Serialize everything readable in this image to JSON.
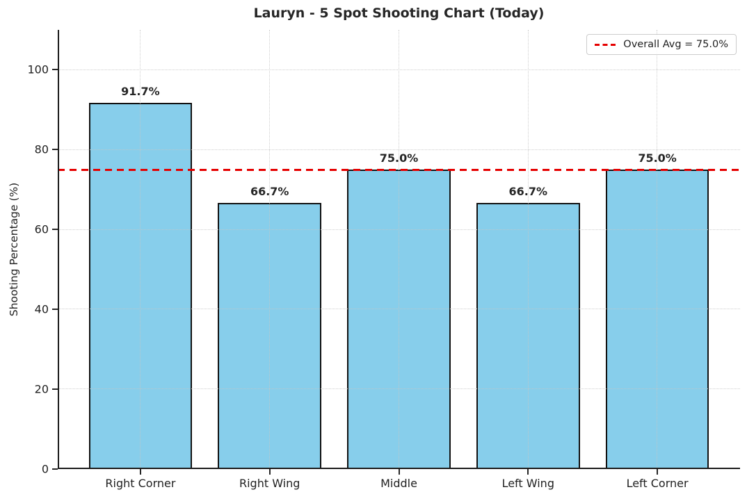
{
  "chart_data": {
    "type": "bar",
    "title": "Lauryn - 5 Spot Shooting Chart (Today)",
    "xlabel": "",
    "ylabel": "Shooting Percentage (%)",
    "categories": [
      "Right Corner",
      "Right Wing",
      "Middle",
      "Left Wing",
      "Left Corner"
    ],
    "values": [
      91.7,
      66.7,
      75.0,
      66.7,
      75.0
    ],
    "bar_labels": [
      "91.7%",
      "66.7%",
      "75.0%",
      "66.7%",
      "75.0%"
    ],
    "y_ticks": [
      0,
      20,
      40,
      60,
      80,
      100
    ],
    "y_tick_labels": [
      "0",
      "20",
      "40",
      "60",
      "80",
      "100"
    ],
    "ylim": [
      0,
      110
    ],
    "grid": "dotted, both axes, light gray",
    "spines": "left and bottom only",
    "avg_line": {
      "value": 75.0,
      "style": "dashed",
      "color": "#e50000"
    },
    "legend": {
      "position": "upper right",
      "entries": [
        {
          "label": "Overall Avg = 75.0%",
          "style": "dashed",
          "color": "#e50000"
        }
      ]
    },
    "colors": {
      "bar_fill": "#87ceeb",
      "bar_edge": "#111111",
      "text": "#262626",
      "grid": "#c6c6c6",
      "background": "#ffffff"
    }
  }
}
